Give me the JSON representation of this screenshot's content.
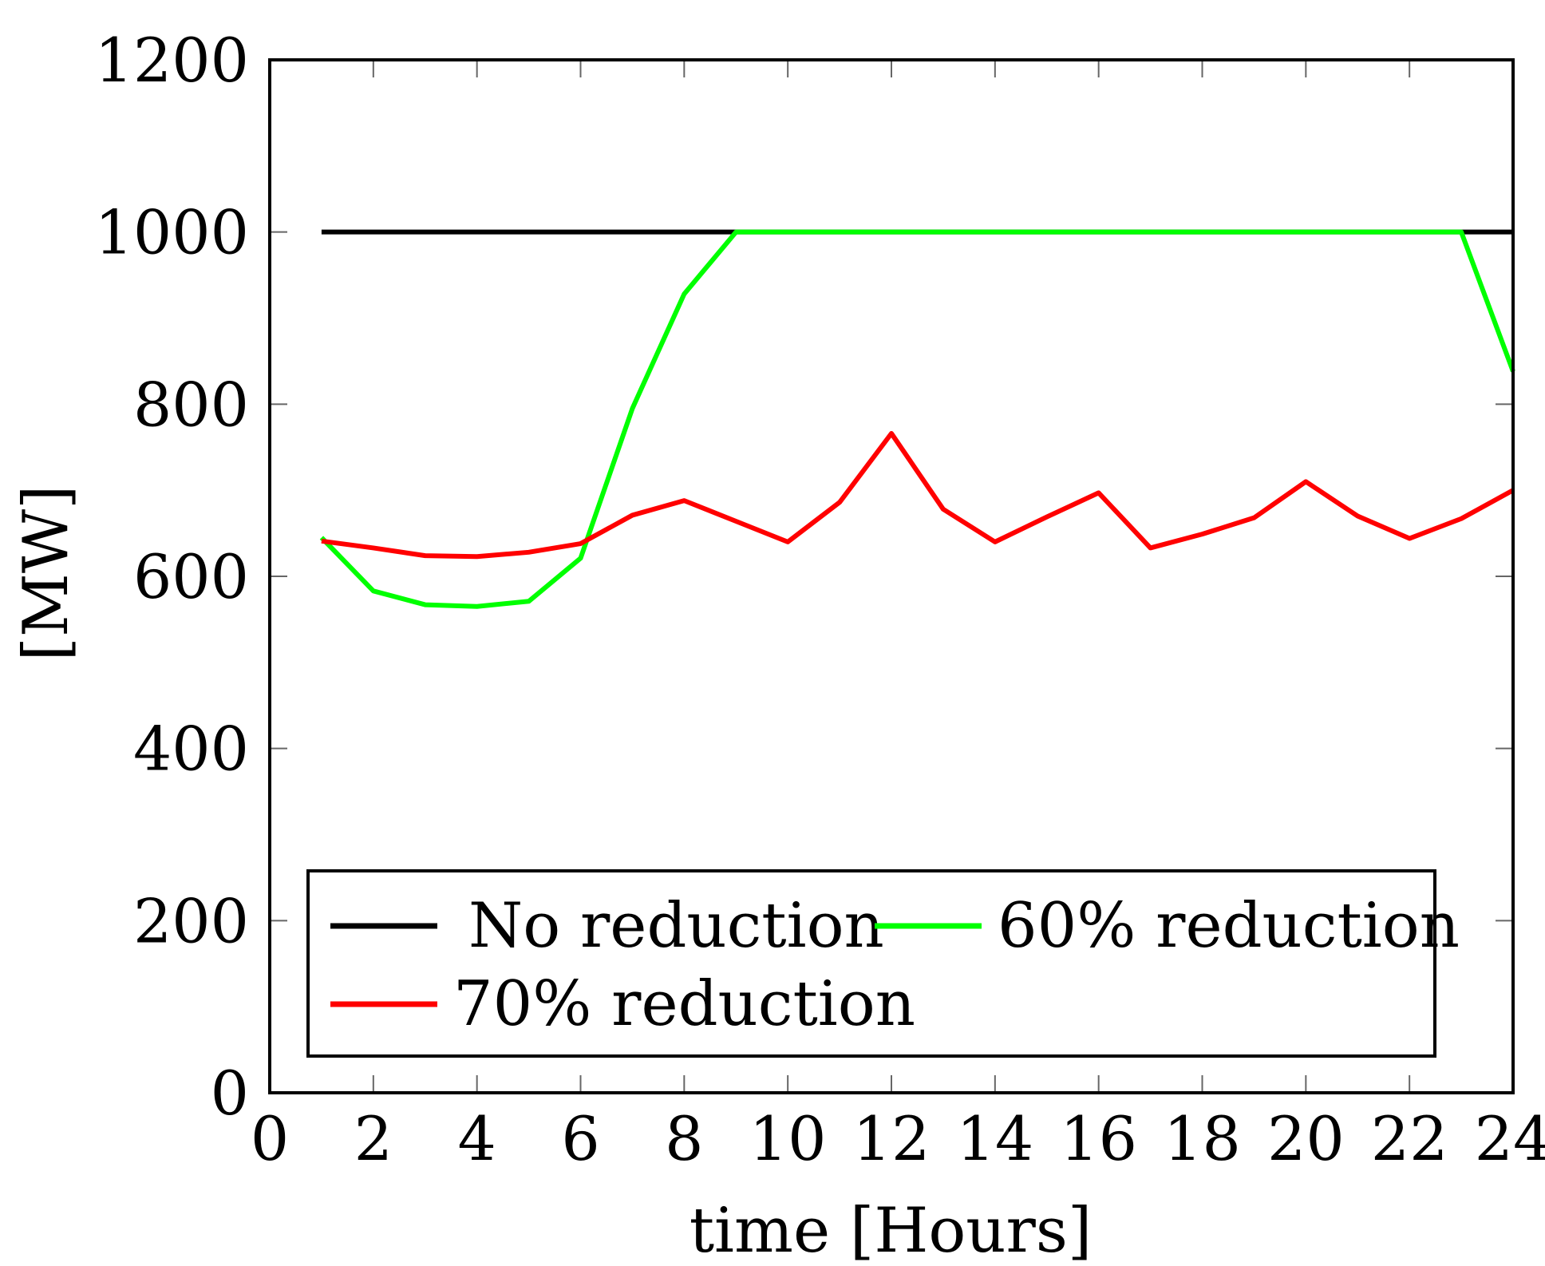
{
  "chart_data": {
    "type": "line",
    "title": "",
    "xlabel": "time [Hours]",
    "ylabel": "[MW]",
    "xlim": [
      0,
      24
    ],
    "ylim": [
      0,
      1200
    ],
    "xticks": [
      0,
      2,
      4,
      6,
      8,
      10,
      12,
      14,
      16,
      18,
      20,
      22,
      24
    ],
    "yticks": [
      0,
      200,
      400,
      600,
      800,
      1000,
      1200
    ],
    "grid": false,
    "legend_position": "bottom",
    "x": [
      1,
      2,
      3,
      4,
      5,
      6,
      7,
      8,
      9,
      10,
      11,
      12,
      13,
      14,
      15,
      16,
      17,
      18,
      19,
      20,
      21,
      22,
      23,
      24
    ],
    "series": [
      {
        "name": "No reduction",
        "color": "#000000",
        "values": [
          1000,
          1000,
          1000,
          1000,
          1000,
          1000,
          1000,
          1000,
          1000,
          1000,
          1000,
          1000,
          1000,
          1000,
          1000,
          1000,
          1000,
          1000,
          1000,
          1000,
          1000,
          1000,
          1000,
          1000
        ]
      },
      {
        "name": "60% reduction",
        "color": "#00ff00",
        "values": [
          645,
          583,
          567,
          565,
          571,
          621,
          795,
          928,
          1000,
          1000,
          1000,
          1000,
          1000,
          1000,
          1000,
          1000,
          1000,
          1000,
          1000,
          1000,
          1000,
          1000,
          1000,
          838
        ]
      },
      {
        "name": "70% reduction",
        "color": "#ff0000",
        "values": [
          641,
          633,
          624,
          623,
          628,
          638,
          671,
          688,
          664,
          640,
          686,
          766,
          678,
          640,
          669,
          697,
          633,
          649,
          668,
          710,
          670,
          644,
          667,
          700
        ]
      }
    ]
  }
}
